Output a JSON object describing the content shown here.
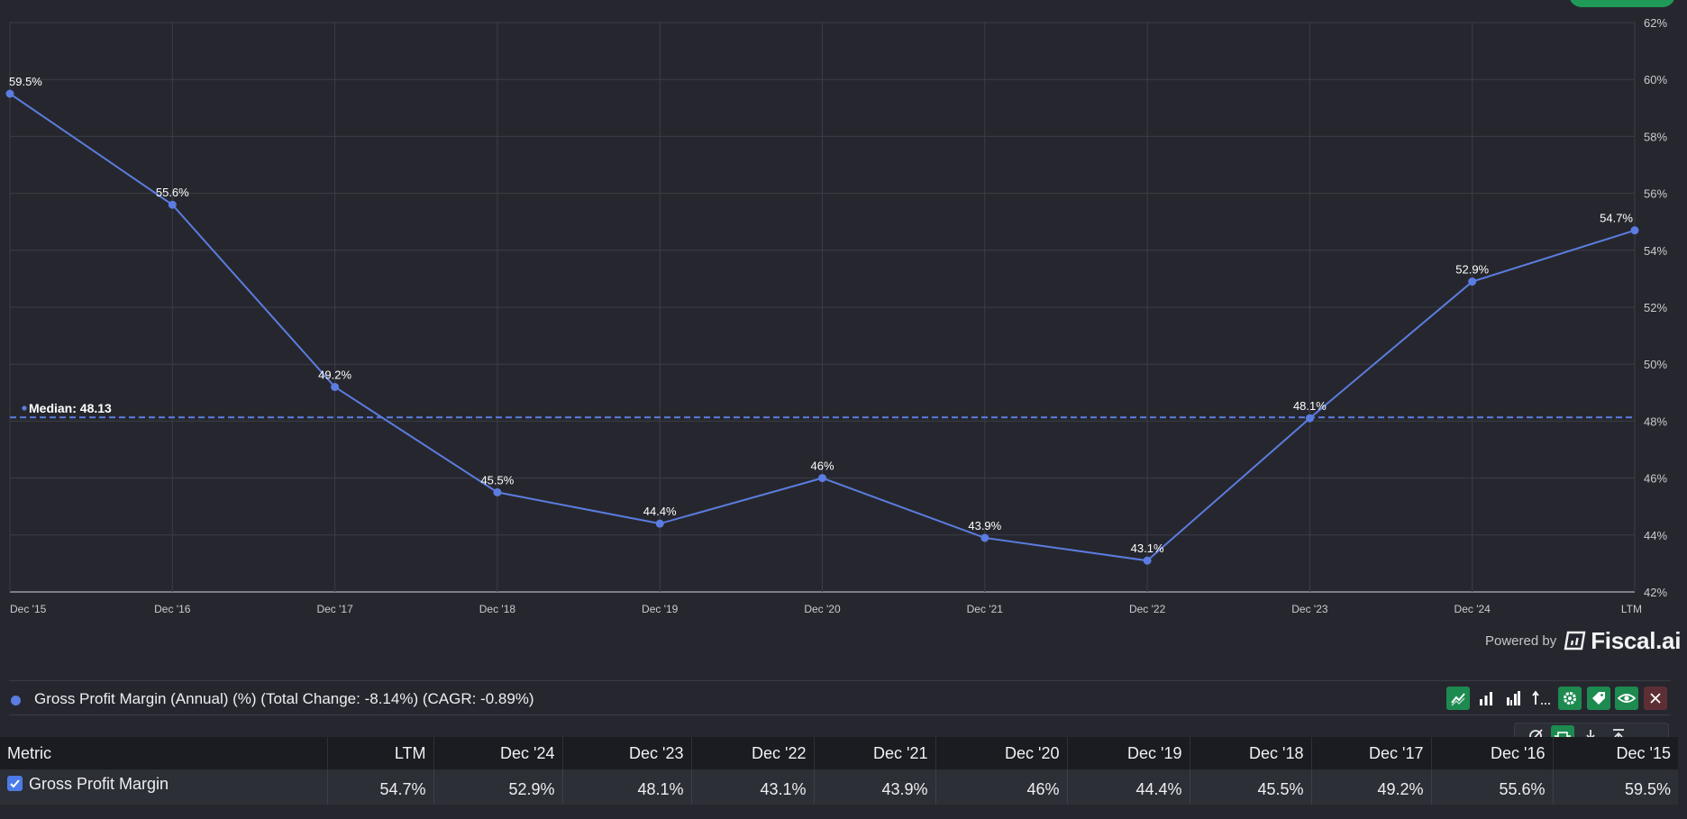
{
  "chart_data": {
    "type": "line",
    "x": [
      "Dec '15",
      "Dec '16",
      "Dec '17",
      "Dec '18",
      "Dec '19",
      "Dec '20",
      "Dec '21",
      "Dec '22",
      "Dec '23",
      "Dec '24",
      "LTM"
    ],
    "x_tick_labels": [
      "Dec '15",
      "Dec '16",
      "Dec '17",
      "Dec '18",
      "Dec '19",
      "Dec '20",
      "Dec '21",
      "Dec '22",
      "Dec '23",
      "Dec '24",
      "LTM"
    ],
    "series": [
      {
        "values": [
          59.5,
          55.6,
          49.2,
          45.5,
          44.4,
          46,
          43.9,
          43.1,
          48.1,
          52.9,
          54.7
        ],
        "labels": [
          "59.5%",
          "55.6%",
          "49.2%",
          "45.5%",
          "44.4%",
          "46%",
          "43.9%",
          "43.1%",
          "48.1%",
          "52.9%",
          "54.7%"
        ],
        "color": "#5b7ce0"
      }
    ],
    "y_ticks": [
      42,
      44,
      46,
      48,
      50,
      52,
      54,
      56,
      58,
      60,
      62
    ],
    "y_tick_labels": [
      "42%",
      "44%",
      "46%",
      "48%",
      "50%",
      "52%",
      "54%",
      "56%",
      "58%",
      "60%",
      "62%"
    ],
    "ylim": [
      42,
      62
    ],
    "y_axis_side": "right",
    "grid": true,
    "median": {
      "value": 48.13,
      "label": "Median: 48.13"
    }
  },
  "branding": {
    "powered_by": "Powered by",
    "brand": "Fiscal.ai"
  },
  "legend": {
    "text": "Gross Profit Margin (Annual) (%) (Total Change: -8.14%) (CAGR: -0.89%)",
    "color": "#5b7ce0"
  },
  "toolbar": {
    "buttons": [
      "line-chart-icon",
      "bar-chart-icon",
      "grouped-bar-chart-icon",
      "sort-icon",
      "gear-icon",
      "tag-icon",
      "eye-icon",
      "close-icon"
    ],
    "sub_buttons": [
      "no-fill-icon",
      "fit-icon",
      "download-icon",
      "export-icon"
    ]
  },
  "table": {
    "headers": [
      "Metric",
      "LTM",
      "Dec '24",
      "Dec '23",
      "Dec '22",
      "Dec '21",
      "Dec '20",
      "Dec '19",
      "Dec '18",
      "Dec '17",
      "Dec '16",
      "Dec '15"
    ],
    "rows": [
      {
        "metric": "Gross Profit Margin",
        "checked": true,
        "values": [
          "54.7%",
          "52.9%",
          "48.1%",
          "43.1%",
          "43.9%",
          "46%",
          "44.4%",
          "45.5%",
          "49.2%",
          "55.6%",
          "59.5%"
        ]
      }
    ]
  },
  "colors": {
    "background": "#26272e",
    "line": "#5b7ce0",
    "accent_green": "#1d8a50"
  }
}
